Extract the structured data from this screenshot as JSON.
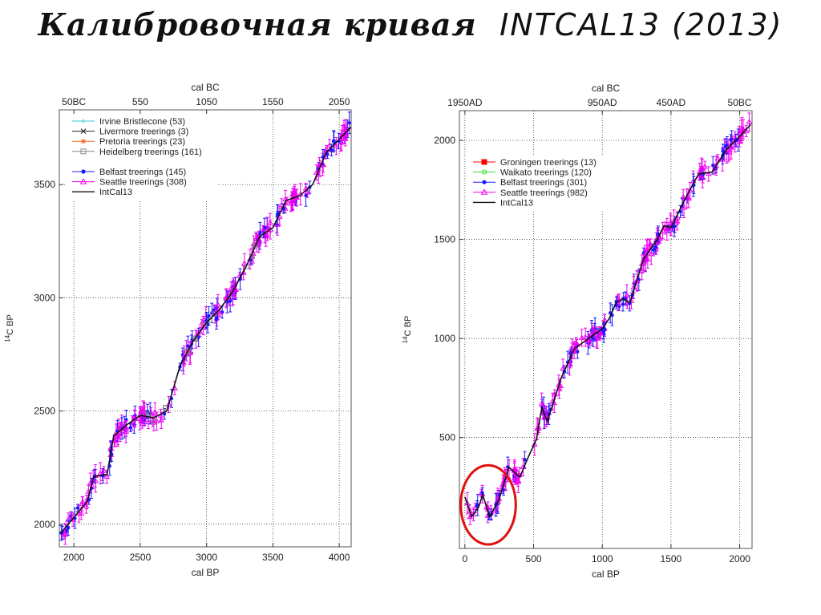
{
  "page": {
    "title_main": "Калибровочная кривая",
    "title_sub": "INTCAL13 (2013)"
  },
  "colors": {
    "intcal": "#111111",
    "seattle": "#ee00ee",
    "belfast": "#1a1aff",
    "irvine": "#33cccc",
    "livermore": "#222222",
    "pretoria": "#ff6622",
    "heidelberg": "#888888",
    "groningen": "#ff0000",
    "waikato": "#33dd33",
    "highlight": "#e01010"
  },
  "chart_data": [
    {
      "type": "scatter",
      "title": "",
      "xlabel": "cal BP",
      "ylabel": "14C BP",
      "top_axis_label": "cal BC",
      "xlim": [
        1890,
        4090
      ],
      "ylim": [
        1900,
        3830
      ],
      "xticks": [
        2000,
        2500,
        3000,
        3500,
        4000
      ],
      "yticks": [
        2000,
        2500,
        3000,
        3500
      ],
      "top_ticks": [
        {
          "x": 2000,
          "label": "50BC"
        },
        {
          "x": 2500,
          "label": "550"
        },
        {
          "x": 3000,
          "label": "1050"
        },
        {
          "x": 3500,
          "label": "1550"
        },
        {
          "x": 4000,
          "label": "2050"
        }
      ],
      "grid": true,
      "legend_placement": "top-left",
      "legend": [
        {
          "name": "Irvine Bristlecone (53)",
          "marker": "plus",
          "color": "#33cccc"
        },
        {
          "name": "Livermore treerings (3)",
          "marker": "cross",
          "color": "#222222"
        },
        {
          "name": "Pretoria treerings (23)",
          "marker": "star",
          "color": "#ff6622"
        },
        {
          "name": "Heidelberg treerings (161)",
          "marker": "square",
          "color": "#888888"
        },
        {
          "name": "",
          "marker": "none",
          "color": ""
        },
        {
          "name": "Belfast treerings (145)",
          "marker": "dot",
          "color": "#1a1aff"
        },
        {
          "name": "Seattle treerings (308)",
          "marker": "triangle",
          "color": "#ee00ee"
        },
        {
          "name": "IntCal13",
          "marker": "line",
          "color": "#111111"
        }
      ],
      "series": [
        {
          "name": "IntCal13",
          "x": [
            1900,
            2000,
            2100,
            2150,
            2250,
            2300,
            2400,
            2500,
            2600,
            2700,
            2800,
            2900,
            3000,
            3100,
            3200,
            3300,
            3400,
            3500,
            3600,
            3700,
            3800,
            3900,
            4000,
            4100
          ],
          "y": [
            1960,
            2030,
            2100,
            2210,
            2220,
            2390,
            2440,
            2480,
            2470,
            2500,
            2700,
            2810,
            2890,
            2950,
            3030,
            3140,
            3270,
            3310,
            3430,
            3450,
            3500,
            3640,
            3700,
            3760
          ]
        }
      ]
    },
    {
      "type": "scatter",
      "title": "",
      "xlabel": "cal BP",
      "ylabel": "14C BP",
      "top_axis_label": "cal BC",
      "xlim": [
        -40,
        2090
      ],
      "ylim": [
        -60,
        2150
      ],
      "xticks": [
        0,
        500,
        1000,
        1500,
        2000
      ],
      "yticks": [
        500,
        1000,
        1500,
        2000
      ],
      "top_ticks": [
        {
          "x": 0,
          "label": "1950AD"
        },
        {
          "x": 1000,
          "label": "950AD"
        },
        {
          "x": 1500,
          "label": "450AD"
        },
        {
          "x": 2000,
          "label": "50BC"
        }
      ],
      "grid": true,
      "legend_placement": "top-left",
      "legend": [
        {
          "name": "Groningen treerings (13)",
          "marker": "square",
          "color": "#ff0000"
        },
        {
          "name": "Waikato treerings (120)",
          "marker": "circle",
          "color": "#33dd33"
        },
        {
          "name": "Belfast treerings (301)",
          "marker": "dot",
          "color": "#1a1aff"
        },
        {
          "name": "Seattle treerings (982)",
          "marker": "triangle",
          "color": "#ee00ee"
        },
        {
          "name": "IntCal13",
          "marker": "line",
          "color": "#111111"
        }
      ],
      "highlight_region": {
        "x": [
          -30,
          370
        ],
        "y": [
          -40,
          360
        ]
      },
      "series": [
        {
          "name": "IntCal13",
          "x": [
            0,
            50,
            100,
            130,
            180,
            250,
            320,
            400,
            460,
            520,
            560,
            600,
            700,
            800,
            900,
            1000,
            1050,
            1100,
            1150,
            1200,
            1300,
            1400,
            1450,
            1500,
            1600,
            1700,
            1800,
            1900,
            2000,
            2080
          ],
          "y": [
            200,
            100,
            150,
            210,
            100,
            190,
            350,
            300,
            400,
            490,
            650,
            580,
            800,
            950,
            1000,
            1050,
            1100,
            1180,
            1200,
            1180,
            1400,
            1500,
            1570,
            1560,
            1700,
            1830,
            1840,
            1950,
            2020,
            2080
          ]
        }
      ]
    }
  ]
}
